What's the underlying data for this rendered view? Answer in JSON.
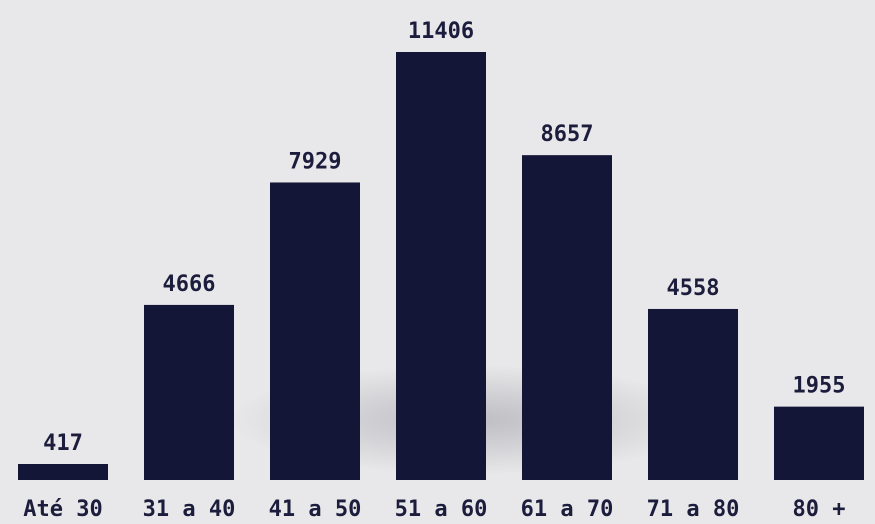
{
  "chart_data": {
    "type": "bar",
    "categories": [
      "Até 30",
      "31 a 40",
      "41 a 50",
      "51 a 60",
      "61 a 70",
      "71 a 80",
      "80 +"
    ],
    "values": [
      417,
      4666,
      7929,
      11406,
      8657,
      4558,
      1955
    ],
    "data_labels": [
      "417",
      "4666",
      "7929",
      "11406",
      "8657",
      "4558",
      "1955"
    ],
    "bar_color": "#131636",
    "background_color": "#e8e8ea",
    "title": "",
    "xlabel": "",
    "ylabel": "",
    "ylim": [
      0,
      11406
    ],
    "grid": false,
    "legend": "none"
  }
}
